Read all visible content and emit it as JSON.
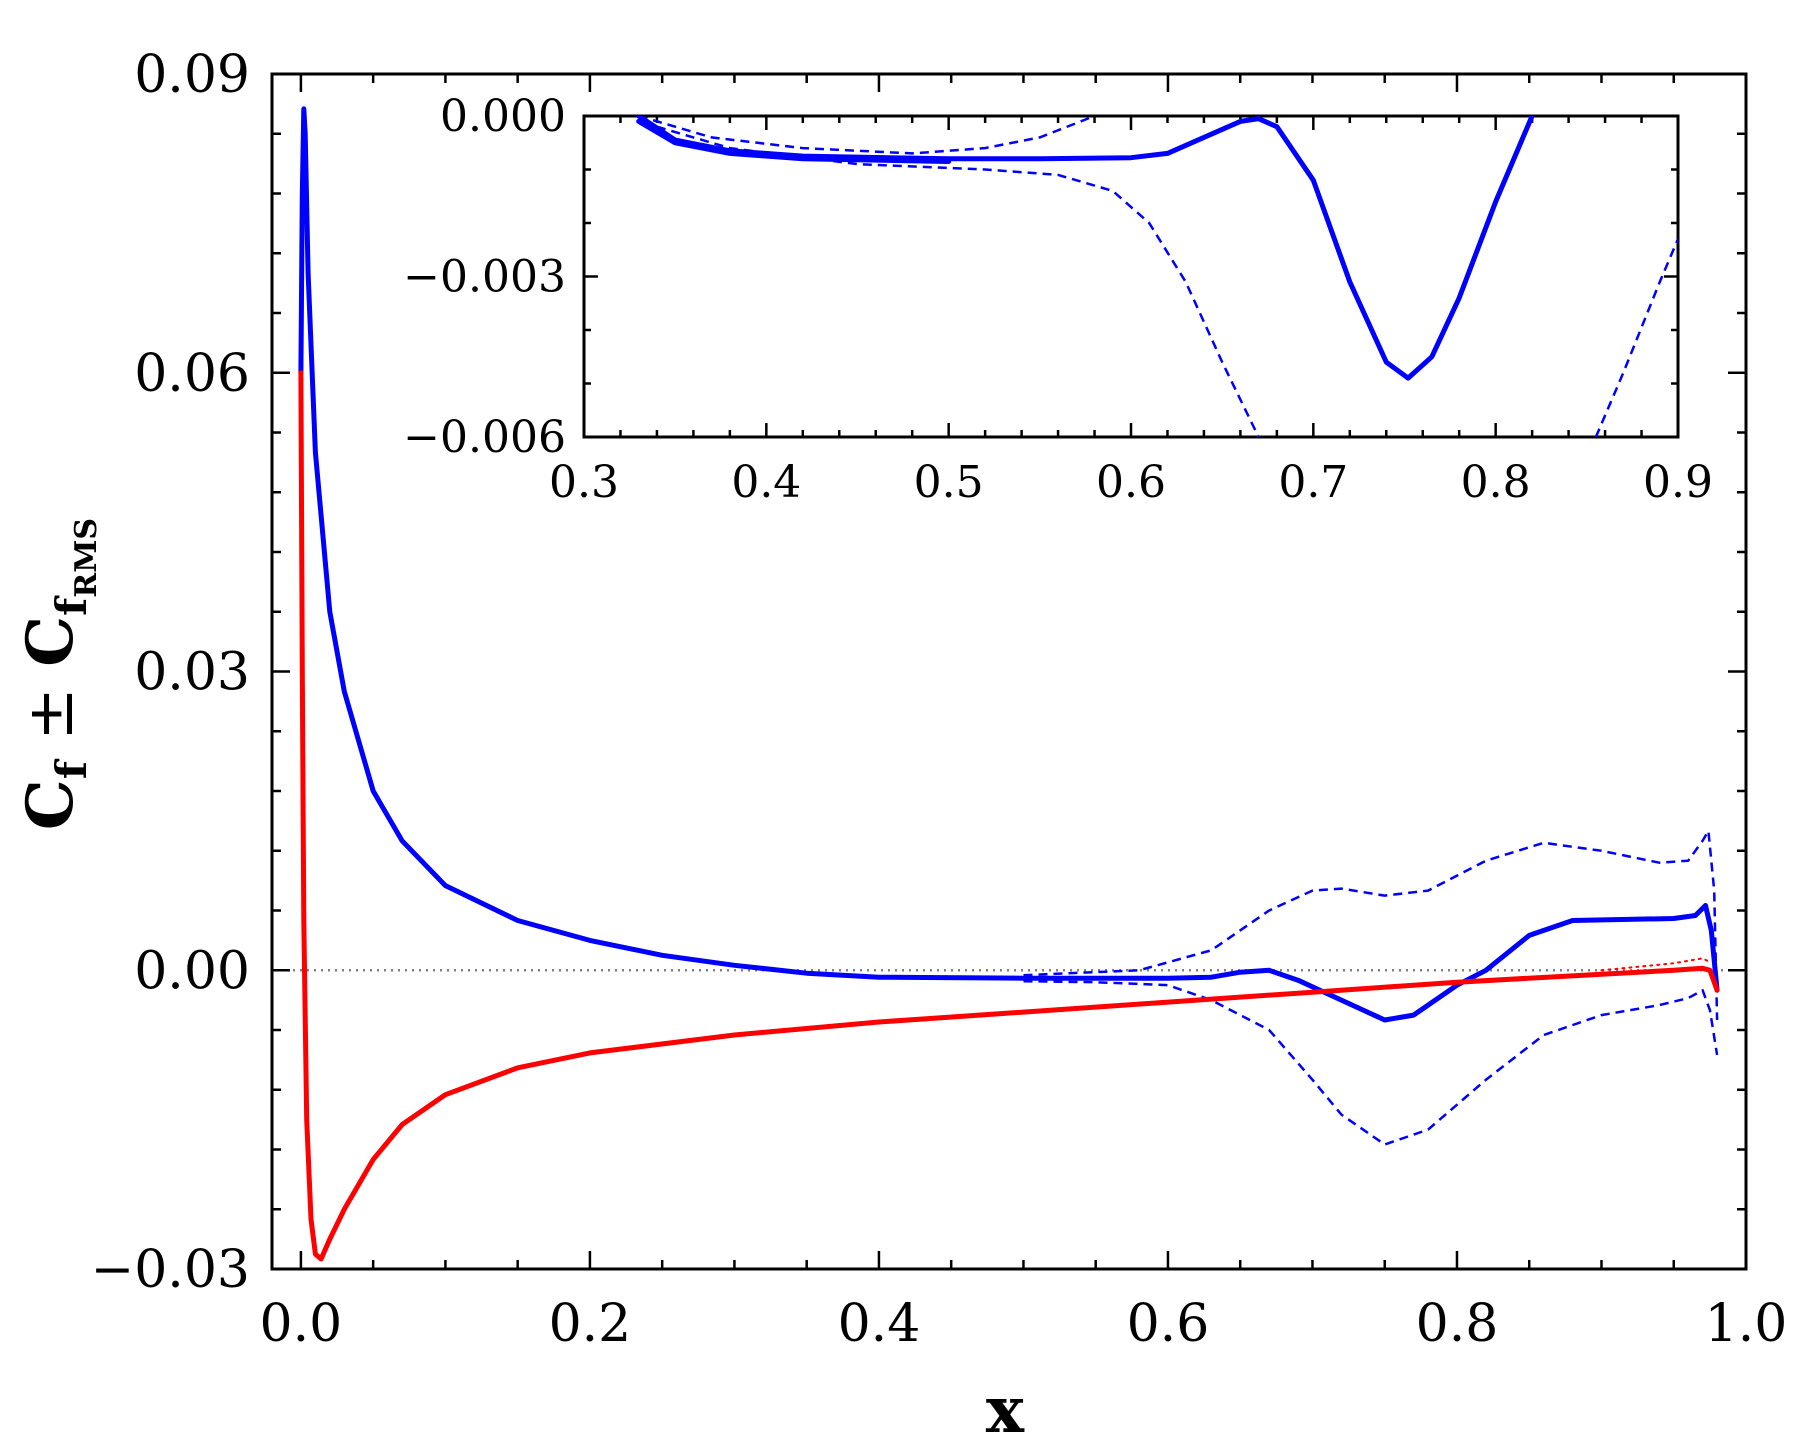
{
  "chart_data": [
    {
      "type": "line",
      "xlabel": "x",
      "ylabel": {
        "main": "C",
        "sub1": "f",
        "op": " ± ",
        "main2": "C",
        "sub2": "f",
        "sub3": "RMS"
      },
      "xlim": [
        -0.02,
        1.0
      ],
      "ylim": [
        -0.03,
        0.09
      ],
      "xticks": [
        "0.0",
        "0.2",
        "0.4",
        "0.6",
        "0.8",
        "1.0"
      ],
      "yticks": [
        "−0.03",
        "0.00",
        "0.03",
        "0.06",
        "0.09"
      ],
      "grid": false,
      "reference_line": 0.0,
      "colors": {
        "upper": "#0000ff",
        "lower": "#ff0000",
        "zero": "#808080"
      },
      "series": [
        {
          "style": "solid",
          "color": "#0000ff",
          "points": [
            [
              0.0,
              0.06
            ],
            [
              0.001,
              0.078
            ],
            [
              0.002,
              0.0865
            ],
            [
              0.003,
              0.084
            ],
            [
              0.005,
              0.07
            ],
            [
              0.01,
              0.052
            ],
            [
              0.02,
              0.036
            ],
            [
              0.03,
              0.028
            ],
            [
              0.05,
              0.018
            ],
            [
              0.07,
              0.013
            ],
            [
              0.1,
              0.0085
            ],
            [
              0.15,
              0.005
            ],
            [
              0.2,
              0.003
            ],
            [
              0.25,
              0.0015
            ],
            [
              0.3,
              0.0005
            ],
            [
              0.35,
              -0.0003
            ],
            [
              0.4,
              -0.0007
            ],
            [
              0.5,
              -0.0008
            ],
            [
              0.6,
              -0.0008
            ],
            [
              0.63,
              -0.0007
            ],
            [
              0.65,
              -0.0002
            ],
            [
              0.67,
              0.0
            ],
            [
              0.69,
              -0.001
            ],
            [
              0.72,
              -0.003
            ],
            [
              0.75,
              -0.005
            ],
            [
              0.77,
              -0.0045
            ],
            [
              0.8,
              -0.0015
            ],
            [
              0.82,
              0.0
            ],
            [
              0.85,
              0.0035
            ],
            [
              0.88,
              0.005
            ],
            [
              0.95,
              0.0052
            ],
            [
              0.965,
              0.0055
            ],
            [
              0.972,
              0.0065
            ],
            [
              0.976,
              0.004
            ],
            [
              0.98,
              -0.002
            ]
          ]
        },
        {
          "style": "dashed",
          "color": "#0000ff",
          "points": [
            [
              0.5,
              -0.0005
            ],
            [
              0.58,
              0.0
            ],
            [
              0.63,
              0.002
            ],
            [
              0.67,
              0.006
            ],
            [
              0.7,
              0.008
            ],
            [
              0.72,
              0.0082
            ],
            [
              0.75,
              0.0075
            ],
            [
              0.78,
              0.008
            ],
            [
              0.82,
              0.011
            ],
            [
              0.86,
              0.0128
            ],
            [
              0.9,
              0.012
            ],
            [
              0.94,
              0.0108
            ],
            [
              0.96,
              0.011
            ],
            [
              0.97,
              0.013
            ],
            [
              0.974,
              0.014
            ],
            [
              0.978,
              0.008
            ],
            [
              0.98,
              -0.005
            ]
          ]
        },
        {
          "style": "dashed",
          "color": "#0000ff",
          "points": [
            [
              0.5,
              -0.0011
            ],
            [
              0.55,
              -0.0012
            ],
            [
              0.6,
              -0.0015
            ],
            [
              0.63,
              -0.003
            ],
            [
              0.67,
              -0.006
            ],
            [
              0.7,
              -0.011
            ],
            [
              0.72,
              -0.0145
            ],
            [
              0.75,
              -0.0175
            ],
            [
              0.78,
              -0.016
            ],
            [
              0.82,
              -0.011
            ],
            [
              0.86,
              -0.0065
            ],
            [
              0.9,
              -0.0045
            ],
            [
              0.94,
              -0.0035
            ],
            [
              0.96,
              -0.0028
            ],
            [
              0.97,
              -0.002
            ],
            [
              0.975,
              -0.004
            ],
            [
              0.98,
              -0.0085
            ]
          ]
        },
        {
          "style": "solid",
          "color": "#ff0000",
          "points": [
            [
              0.0,
              0.06
            ],
            [
              0.001,
              0.03
            ],
            [
              0.002,
              0.005
            ],
            [
              0.004,
              -0.015
            ],
            [
              0.007,
              -0.025
            ],
            [
              0.01,
              -0.0285
            ],
            [
              0.014,
              -0.029
            ],
            [
              0.02,
              -0.027
            ],
            [
              0.03,
              -0.024
            ],
            [
              0.05,
              -0.019
            ],
            [
              0.07,
              -0.0155
            ],
            [
              0.1,
              -0.0125
            ],
            [
              0.15,
              -0.0098
            ],
            [
              0.2,
              -0.0083
            ],
            [
              0.3,
              -0.0065
            ],
            [
              0.4,
              -0.0052
            ],
            [
              0.5,
              -0.0042
            ],
            [
              0.6,
              -0.0032
            ],
            [
              0.7,
              -0.0022
            ],
            [
              0.8,
              -0.0012
            ],
            [
              0.9,
              -0.0004
            ],
            [
              0.95,
              0.0
            ],
            [
              0.97,
              0.0002
            ],
            [
              0.975,
              0.0
            ],
            [
              0.98,
              -0.002
            ]
          ]
        },
        {
          "style": "dotted",
          "color": "#ff0000",
          "points": [
            [
              0.9,
              0.0
            ],
            [
              0.95,
              0.0007
            ],
            [
              0.97,
              0.0012
            ],
            [
              0.975,
              0.0008
            ]
          ]
        }
      ]
    },
    {
      "type": "line",
      "xlim": [
        0.3,
        0.9
      ],
      "ylim": [
        -0.006,
        0.0
      ],
      "xticks": [
        "0.3",
        "0.4",
        "0.5",
        "0.6",
        "0.7",
        "0.8",
        "0.9"
      ],
      "yticks": [
        "0.000",
        "−0.003",
        "−0.006"
      ],
      "grid": false,
      "series": [
        {
          "style": "solid",
          "color": "#0000ff",
          "points": [
            [
              0.33,
              0.0
            ],
            [
              0.35,
              -0.00045
            ],
            [
              0.38,
              -0.00065
            ],
            [
              0.42,
              -0.00075
            ],
            [
              0.5,
              -0.0008
            ],
            [
              0.55,
              -0.0008
            ],
            [
              0.6,
              -0.00078
            ],
            [
              0.62,
              -0.0007
            ],
            [
              0.64,
              -0.0004
            ],
            [
              0.66,
              -0.0001
            ],
            [
              0.67,
              -5e-05
            ],
            [
              0.68,
              -0.0002
            ],
            [
              0.7,
              -0.0012
            ],
            [
              0.72,
              -0.0031
            ],
            [
              0.74,
              -0.0046
            ],
            [
              0.752,
              -0.0049
            ],
            [
              0.765,
              -0.0045
            ],
            [
              0.78,
              -0.0034
            ],
            [
              0.8,
              -0.0016
            ],
            [
              0.82,
              0.0
            ]
          ]
        },
        {
          "style": "solid",
          "color": "#0000ff",
          "points": [
            [
              0.33,
              -0.0001
            ],
            [
              0.35,
              -0.0005
            ],
            [
              0.38,
              -0.0007
            ],
            [
              0.42,
              -0.0008
            ],
            [
              0.5,
              -0.00085
            ]
          ]
        },
        {
          "style": "dashed",
          "color": "#0000ff",
          "points": [
            [
              0.33,
              0.0
            ],
            [
              0.37,
              -0.0004
            ],
            [
              0.42,
              -0.0006
            ],
            [
              0.48,
              -0.0007
            ],
            [
              0.52,
              -0.0006
            ],
            [
              0.55,
              -0.0004
            ],
            [
              0.58,
              0.0
            ]
          ]
        },
        {
          "style": "dashed",
          "color": "#0000ff",
          "points": [
            [
              0.34,
              -0.0002
            ],
            [
              0.38,
              -0.0006
            ],
            [
              0.45,
              -0.0009
            ],
            [
              0.52,
              -0.001
            ],
            [
              0.56,
              -0.0011
            ],
            [
              0.59,
              -0.0014
            ],
            [
              0.61,
              -0.002
            ],
            [
              0.63,
              -0.0031
            ],
            [
              0.65,
              -0.0046
            ],
            [
              0.67,
              -0.006
            ]
          ]
        },
        {
          "style": "dashed",
          "color": "#0000ff",
          "points": [
            [
              0.855,
              -0.006
            ],
            [
              0.87,
              -0.0048
            ],
            [
              0.89,
              -0.0031
            ],
            [
              0.9,
              -0.0023
            ]
          ]
        }
      ]
    }
  ]
}
